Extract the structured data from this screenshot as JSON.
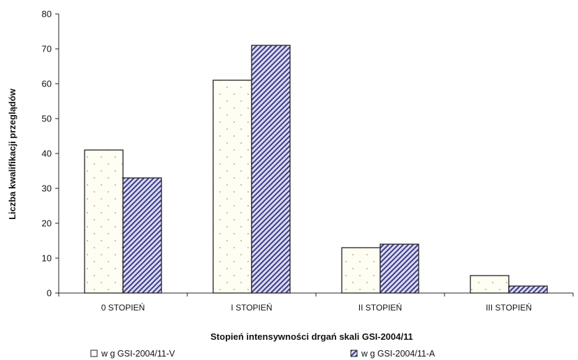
{
  "chart_data": {
    "type": "bar",
    "title": "",
    "xlabel": "Stopień intensywności drgań skali GSI-2004/11",
    "ylabel": "Liczba kwalifikacji przeglądów",
    "ylim": [
      0,
      80
    ],
    "yticks": [
      "0",
      "10",
      "20",
      "30",
      "40",
      "50",
      "60",
      "70",
      "80"
    ],
    "categories": [
      "0 STOPIEŃ",
      "I STOPIEŃ",
      "II STOPIEŃ",
      "III STOPIEŃ"
    ],
    "series": [
      {
        "name": "w g GSI-2004/11-V",
        "values": [
          41,
          61,
          13,
          5
        ],
        "fill": "dotted",
        "color": "#fffef2"
      },
      {
        "name": "w g GSI-2004/11-A",
        "values": [
          33,
          71,
          14,
          2
        ],
        "fill": "diagonal-hatch",
        "color": "#3d3a8a"
      }
    ],
    "grid": false,
    "legend_position": "bottom"
  }
}
